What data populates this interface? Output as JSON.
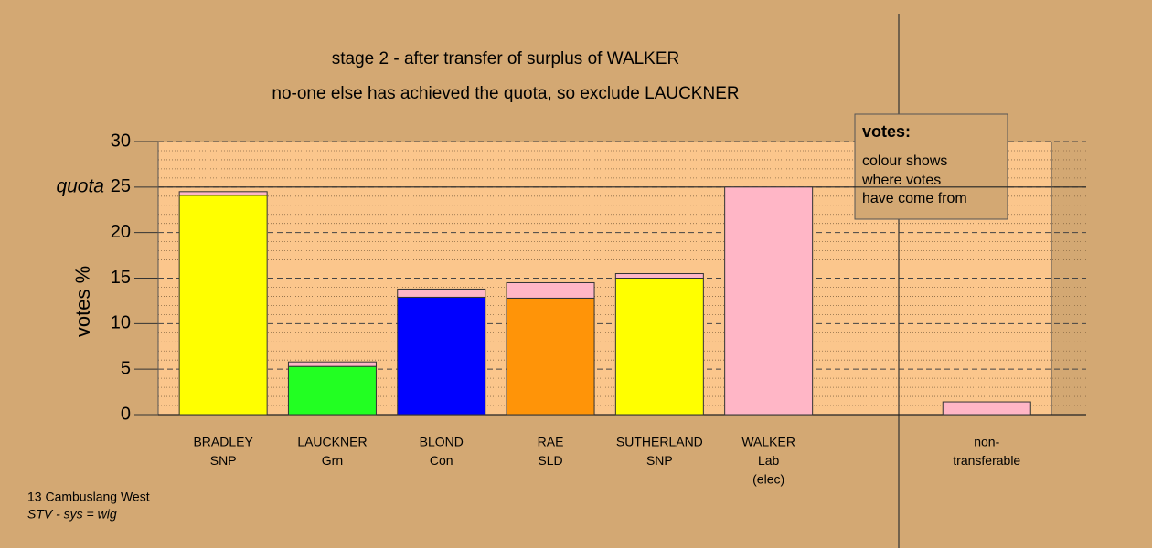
{
  "chart_data": {
    "type": "stacked_bar",
    "title": "stage 2 - after transfer of surplus of WALKER",
    "subtitle": "no-one else has achieved the quota, so exclude LAUCKNER",
    "y_label": "votes %",
    "categories": [
      [
        "BRADLEY",
        "SNP"
      ],
      [
        "LAUCKNER",
        "Grn"
      ],
      [
        "BLOND",
        "Con"
      ],
      [
        "RAE",
        "SLD"
      ],
      [
        "SUTHERLAND",
        "SNP"
      ],
      [
        "WALKER",
        "Lab",
        "(elec)"
      ],
      null,
      [
        "non-",
        "transferable"
      ]
    ],
    "series": [
      {
        "values": [
          24.1,
          5.3,
          12.9,
          12.8,
          15.0,
          25.0,
          null,
          null
        ],
        "colors": [
          "#ffff00",
          "#22ff22",
          "#0000ff",
          "#ff9408",
          "#ffff00",
          "#ffb6c6",
          null,
          null
        ]
      },
      {
        "values": [
          0.4,
          0.5,
          0.9,
          1.7,
          0.5,
          null,
          null,
          1.4
        ],
        "color": "#ffb6c6"
      }
    ],
    "quota": {
      "value": 25,
      "label": "quota"
    },
    "ylim": [
      0,
      30
    ],
    "yticks": [
      0,
      5,
      10,
      15,
      20,
      25,
      30
    ],
    "grid": true,
    "legend": {
      "title": "votes:",
      "lines": [
        "colour shows",
        "where votes",
        "have come from"
      ]
    },
    "footer": {
      "line1": "13 Cambuslang West",
      "line2": "STV - sys = wig"
    }
  }
}
